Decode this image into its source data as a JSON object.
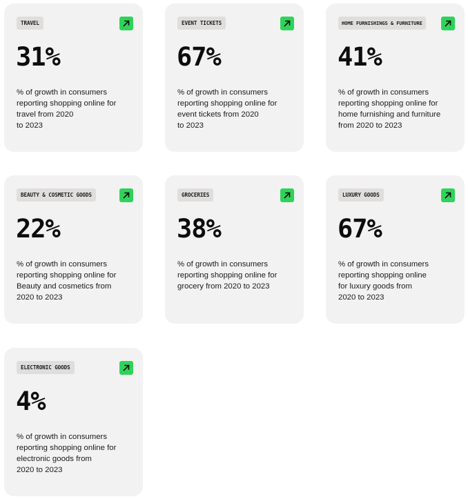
{
  "cards": [
    {
      "tag": "TRAVEL",
      "percent": "31%",
      "description": "% of growth in consumers\nreporting shopping online for\ntravel from 2020\nto 2023",
      "icon": "arrow-up-right-icon"
    },
    {
      "tag": "EVENT TICKETS",
      "percent": "67%",
      "description": "% of growth in consumers\nreporting shopping online for\nevent tickets from 2020\nto 2023",
      "icon": "arrow-up-right-icon"
    },
    {
      "tag": "HOME FURNISHINGS & FURNITURE",
      "percent": "41%",
      "description": "% of growth in consumers\nreporting shopping online for\nhome furnishing and furniture\nfrom 2020 to 2023",
      "icon": "arrow-up-right-icon"
    },
    {
      "tag": "BEAUTY & COSMETIC GOODS",
      "percent": "22%",
      "description": "% of growth in consumers\nreporting shopping online for\nBeauty and cosmetics from\n2020 to 2023",
      "icon": "arrow-up-right-icon"
    },
    {
      "tag": "GROCERIES",
      "percent": "38%",
      "description": "% of growth in consumers\nreporting shopping online for\ngrocery from 2020 to 2023",
      "icon": "arrow-up-right-icon"
    },
    {
      "tag": "LUXURY GOODS",
      "percent": "67%",
      "description": "% of growth in consumers\nreporting shopping online\nfor luxury goods from\n2020 to 2023",
      "icon": "arrow-up-right-icon"
    },
    {
      "tag": "ELECTRONIC GOODS",
      "percent": "4%",
      "description": "% of growth in consumers\nreporting shopping online for\nelectronic goods from\n2020 to 2023",
      "icon": "arrow-up-right-icon"
    }
  ],
  "colors": {
    "card_bg": "#f3f2f2",
    "tag_bg": "#e0dedd",
    "accent_green": "#2fd35a",
    "text": "#0d0d0d"
  }
}
